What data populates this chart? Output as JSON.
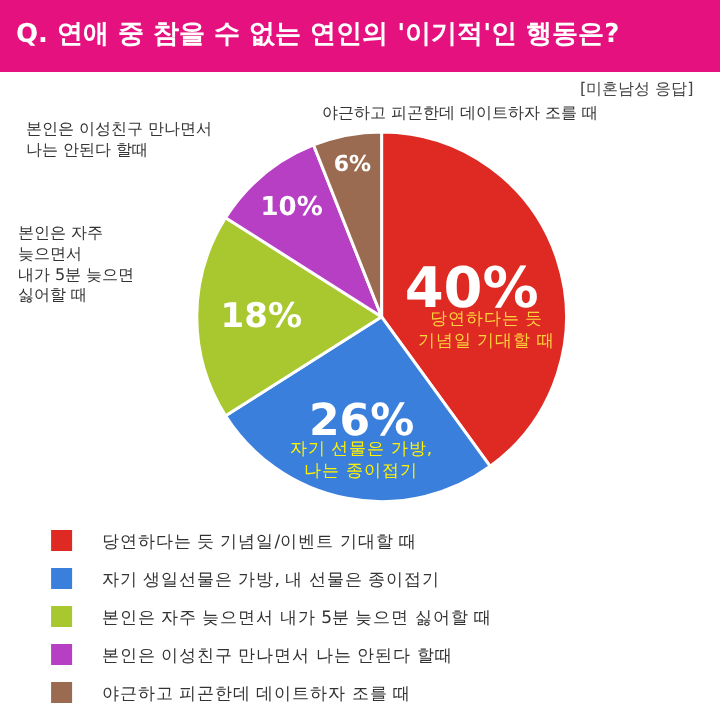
{
  "chart_data": {
    "type": "pie",
    "title": "Q. 연애 중 참을 수 없는 연인의 '이기적'인 행동은?",
    "categories": [
      "당연하다는 듯 기념일/이벤트 기대할 때",
      "자기 생일선물은 가방, 내 선물은 종이접기",
      "본인은 자주 늦으면서 내가 5분 늦으면 싫어할 때",
      "본인은 이성친구 만나면서 나는 안된다 할때",
      "야근하고 피곤한데 데이트하자 조를 때"
    ],
    "values": [
      40,
      26,
      18,
      10,
      6
    ],
    "value_labels": [
      "40%",
      "26%",
      "18%",
      "10%",
      "6%"
    ],
    "colors": [
      "#de2a23",
      "#3b7fdc",
      "#a9c72e",
      "#b63fc3",
      "#9a6b50"
    ],
    "legend": "bottom left",
    "annotations": [
      "[미혼남성 응답]",
      "당연하다는 듯\n기념일 기대할 때",
      "자기 선물은 가방,\n나는 종이접기",
      "본인은 자주\n늦으면서\n내가 5분 늦으면\n싫어할 때",
      "본인은 이성친구 만나면서\n나는 안된다 할때",
      "야근하고 피곤한데 데이트하자 조를 때"
    ]
  }
}
